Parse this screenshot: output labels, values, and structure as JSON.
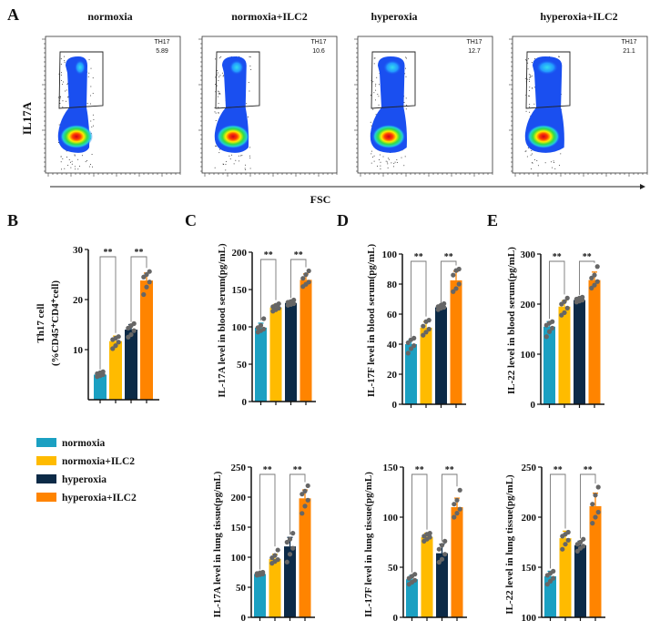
{
  "panel_letters": [
    "A",
    "B",
    "C",
    "D",
    "E"
  ],
  "flow": {
    "ylabel": "IL17A",
    "xlabel": "FSC",
    "panels": [
      {
        "title": "normoxia",
        "gate_label": "TH17",
        "value": "5.89"
      },
      {
        "title": "normoxia+ILC2",
        "gate_label": "TH17",
        "value": "10.6"
      },
      {
        "title": "hyperoxia",
        "gate_label": "TH17",
        "value": "12.7"
      },
      {
        "title": "hyperoxia+ILC2",
        "gate_label": "TH17",
        "value": "21.1"
      }
    ]
  },
  "legend": [
    {
      "label": "normoxia",
      "color": "#1ba0c2"
    },
    {
      "label": "normoxia+ILC2",
      "color": "#ffbb00"
    },
    {
      "label": "hyperoxia",
      "color": "#0c2a47"
    },
    {
      "label": "hyperoxia+ILC2",
      "color": "#ff8400"
    }
  ],
  "chart_data": [
    {
      "panel": "B",
      "type": "bar",
      "ylabel": [
        "Th17 cell",
        "(%CD45⁺CD4⁺cell)"
      ],
      "ylim": [
        0,
        30
      ],
      "ticks": [
        "10",
        "20",
        "30"
      ],
      "tick_values": [
        10,
        20,
        30
      ],
      "categories": [
        "normoxia",
        "normoxia+ILC2",
        "hyperoxia",
        "hyperoxia+ILC2"
      ],
      "values": [
        5,
        11.7,
        14,
        23.8
      ],
      "errors": [
        0.5,
        1,
        1,
        1.5
      ],
      "dots": [
        [
          4.6,
          4.8,
          5,
          5.2,
          5.4,
          5.6
        ],
        [
          10.2,
          10.8,
          11.5,
          12,
          12.3,
          12.6
        ],
        [
          12.5,
          13,
          13.8,
          14.3,
          14.8,
          15.2
        ],
        [
          21,
          22.5,
          23.5,
          24.5,
          25,
          25.6
        ]
      ],
      "significance": [
        "**",
        "**"
      ]
    },
    {
      "panel": "C",
      "type": "bar",
      "ylabel": [
        "IL-17A level  in blood serum(pg/mL)"
      ],
      "ylim": [
        0,
        200
      ],
      "ticks": [
        "0",
        "50",
        "100",
        "150",
        "200"
      ],
      "tick_values": [
        0,
        50,
        100,
        150,
        200
      ],
      "categories": [
        "normoxia",
        "normoxia+ILC2",
        "hyperoxia",
        "hyperoxia+ILC2"
      ],
      "values": [
        99,
        126,
        132,
        163
      ],
      "errors": [
        6,
        4,
        3,
        8
      ],
      "dots": [
        [
          93,
          95,
          97,
          99,
          102,
          111
        ],
        [
          121,
          123,
          125,
          127,
          129,
          131
        ],
        [
          129,
          130,
          131,
          133,
          134,
          136
        ],
        [
          154,
          157,
          160,
          165,
          170,
          175
        ]
      ],
      "significance": [
        "**",
        "**"
      ]
    },
    {
      "panel": "D",
      "type": "bar",
      "ylabel": [
        "IL-17F level  in blood serum(pg/mL)"
      ],
      "ylim": [
        0,
        100
      ],
      "ticks": [
        "0",
        "20",
        "40",
        "60",
        "80",
        "100"
      ],
      "tick_values": [
        0,
        20,
        40,
        60,
        80,
        100
      ],
      "categories": [
        "normoxia",
        "normoxia+ILC2",
        "hyperoxia",
        "hyperoxia+ILC2"
      ],
      "values": [
        40,
        51,
        64.5,
        82.5
      ],
      "errors": [
        3,
        4,
        1,
        6
      ],
      "dots": [
        [
          34,
          37,
          39,
          41,
          43,
          44
        ],
        [
          46,
          48,
          50,
          52,
          55,
          56
        ],
        [
          63,
          64,
          64.5,
          65,
          66,
          67
        ],
        [
          75,
          77,
          80,
          86,
          89,
          90
        ]
      ],
      "significance": [
        "**",
        "**"
      ]
    },
    {
      "panel": "E",
      "type": "bar",
      "ylabel": [
        "IL-22 level  in blood serum(pg/mL)"
      ],
      "ylim": [
        0,
        300
      ],
      "ticks": [
        "0",
        "100",
        "200",
        "300"
      ],
      "tick_values": [
        0,
        100,
        200,
        300
      ],
      "categories": [
        "normoxia",
        "normoxia+ILC2",
        "hyperoxia",
        "hyperoxia+ILC2"
      ],
      "values": [
        155,
        195,
        208,
        248
      ],
      "errors": [
        10,
        12,
        5,
        16
      ],
      "dots": [
        [
          135,
          145,
          152,
          158,
          162,
          165
        ],
        [
          178,
          183,
          192,
          200,
          205,
          212
        ],
        [
          204,
          206,
          208,
          210,
          212,
          214
        ],
        [
          232,
          238,
          245,
          252,
          258,
          275
        ]
      ],
      "significance": [
        "**",
        "**"
      ]
    },
    {
      "panel": "C",
      "type": "bar",
      "ylabel": [
        "IL-17A level  in lung tissue(pg/mL)"
      ],
      "ylim": [
        0,
        250
      ],
      "ticks": [
        "0",
        "50",
        "100",
        "150",
        "200",
        "250"
      ],
      "tick_values": [
        0,
        50,
        100,
        150,
        200,
        250
      ],
      "categories": [
        "normoxia",
        "normoxia+ILC2",
        "hyperoxia",
        "hyperoxia+ILC2"
      ],
      "values": [
        72,
        97,
        118,
        198
      ],
      "errors": [
        3,
        8,
        15,
        14
      ],
      "dots": [
        [
          70,
          71,
          72,
          73,
          74,
          75
        ],
        [
          90,
          93,
          96,
          99,
          103,
          112
        ],
        [
          92,
          105,
          115,
          125,
          130,
          140
        ],
        [
          173,
          185,
          195,
          205,
          210,
          219
        ]
      ],
      "significance": [
        "**",
        "**"
      ]
    },
    {
      "panel": "D",
      "type": "bar",
      "ylabel": [
        "IL-17F level  in lung tissue(pg/mL)"
      ],
      "ylim": [
        0,
        150
      ],
      "ticks": [
        "0",
        "50",
        "100",
        "150"
      ],
      "tick_values": [
        0,
        50,
        100,
        150
      ],
      "categories": [
        "normoxia",
        "normoxia+ILC2",
        "hyperoxia",
        "hyperoxia+ILC2"
      ],
      "values": [
        38,
        80,
        64,
        110
      ],
      "errors": [
        4,
        4,
        9,
        9
      ],
      "dots": [
        [
          33,
          35,
          37,
          39,
          41,
          43
        ],
        [
          76,
          78,
          80,
          81,
          83,
          84
        ],
        [
          55,
          58,
          63,
          68,
          72,
          76
        ],
        [
          100,
          104,
          108,
          113,
          117,
          127
        ]
      ],
      "significance": [
        "**",
        "**"
      ]
    },
    {
      "panel": "E",
      "type": "bar",
      "ylabel": [
        "IL-22 level  in lung tissue(pg/mL)"
      ],
      "ylim": [
        100,
        250
      ],
      "ticks": [
        "100",
        "150",
        "200",
        "250"
      ],
      "tick_values": [
        100,
        150,
        200,
        250
      ],
      "categories": [
        "normoxia",
        "normoxia+ILC2",
        "hyperoxia",
        "hyperoxia+ILC2"
      ],
      "values": [
        141,
        179,
        172,
        211
      ],
      "errors": [
        5,
        7,
        4,
        13
      ],
      "dots": [
        [
          133,
          136,
          139,
          142,
          144,
          146
        ],
        [
          168,
          173,
          177,
          181,
          183,
          185
        ],
        [
          166,
          169,
          171,
          173,
          175,
          178
        ],
        [
          194,
          200,
          205,
          213,
          222,
          230
        ]
      ],
      "significance": [
        "**",
        "**"
      ]
    }
  ]
}
